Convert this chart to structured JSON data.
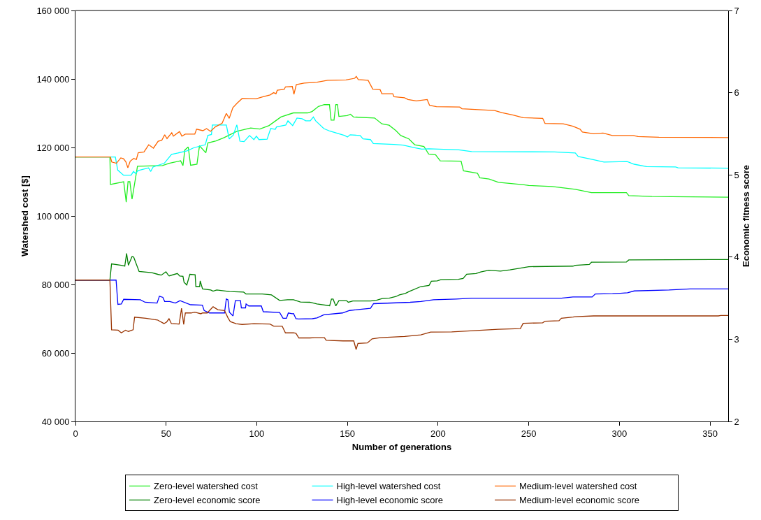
{
  "chart_data": {
    "type": "line",
    "xlabel": "Number of generations",
    "ylabel": "Watershed cost [$]",
    "y2label": "Economic fitness score",
    "xlim": [
      0,
      360
    ],
    "xticks": [
      0,
      50,
      100,
      150,
      200,
      250,
      300,
      350
    ],
    "ylim": [
      40000,
      160000
    ],
    "yticks": [
      {
        "value": 40000,
        "label": "40 000"
      },
      {
        "value": 60000,
        "label": "60 000"
      },
      {
        "value": 80000,
        "label": "80 000"
      },
      {
        "value": 100000,
        "label": "100 000"
      },
      {
        "value": 120000,
        "label": "120 000"
      },
      {
        "value": 140000,
        "label": "140 000"
      },
      {
        "value": 160000,
        "label": "160 000"
      }
    ],
    "y2lim": [
      2,
      7
    ],
    "y2ticks": [
      2,
      3,
      4,
      5,
      6,
      7
    ],
    "grid": false,
    "legend": "bottom",
    "marker": "none",
    "line_style": "solid",
    "series": [
      {
        "name": "Zero-level watershed cost",
        "color": "#22ee22",
        "x": [
          0,
          19,
          19.3,
          26.6,
          28,
          29,
          30,
          31.2,
          34.2,
          48,
          51.7,
          58,
          59.3,
          60.3,
          62.2,
          63.5,
          67,
          68.4,
          71.9,
          73,
          77.5,
          82,
          89,
          96.6,
          101.7,
          106.8,
          113.3,
          120.2,
          124,
          128,
          130.5,
          134,
          137.2,
          140.1,
          141,
          142.6,
          143.6,
          144.5,
          145.3,
          149.8,
          151.7,
          153.4,
          165,
          169,
          173,
          176.8,
          179.4,
          183.9,
          187.1,
          192.2,
          194.8,
          198.6,
          201.2,
          212.7,
          214,
          221.7,
          223,
          228.1,
          233.3,
          247.4,
          250,
          263,
          275.7,
          284.6,
          303.9,
          305.2,
          318,
          360
        ],
        "values": [
          117200,
          117200,
          109200,
          110000,
          104050,
          110000,
          110000,
          104900,
          114500,
          114700,
          115400,
          116100,
          114700,
          119250,
          120130,
          114800,
          115100,
          120500,
          118450,
          121300,
          121900,
          122900,
          124700,
          125700,
          125400,
          126400,
          128900,
          130100,
          130100,
          130100,
          130500,
          131970,
          132500,
          132500,
          128000,
          128000,
          132500,
          132500,
          129050,
          129300,
          129700,
          128900,
          128600,
          126900,
          126500,
          124900,
          123500,
          122500,
          120800,
          120300,
          118100,
          117900,
          116100,
          116000,
          113200,
          112500,
          111150,
          110800,
          109800,
          109100,
          108900,
          108600,
          107770,
          106800,
          106800,
          105950,
          105700,
          105470
        ]
      },
      {
        "name": "High-level watershed cost",
        "color": "#00ffff",
        "x": [
          0,
          22,
          23.3,
          26.5,
          30.7,
          32,
          33.2,
          34.5,
          40.3,
          41.5,
          42.8,
          49,
          53,
          61.5,
          65.2,
          71.6,
          73,
          75,
          75.5,
          83.2,
          84.8,
          87,
          89,
          90.7,
          93,
          96,
          98.4,
          99.8,
          101.2,
          105.7,
          107.7,
          110.2,
          110.9,
          116,
          117.2,
          119.8,
          122.2,
          125,
          127,
          129.5,
          131.2,
          132.5,
          137,
          140.2,
          144,
          148.5,
          150,
          151.5,
          157,
          158.6,
          162.7,
          164.3,
          175.6,
          180.7,
          187.1,
          191,
          194.8,
          211.4,
          218.5,
          264.2,
          275.7,
          277.3,
          286,
          291.5,
          304.3,
          308.2,
          315,
          331,
          332.4,
          360
        ],
        "values": [
          117200,
          117200,
          113400,
          111900,
          111900,
          113000,
          112400,
          113250,
          114050,
          113000,
          114300,
          115400,
          117970,
          119000,
          119900,
          120800,
          123500,
          123800,
          126550,
          126550,
          122500,
          123600,
          126600,
          121830,
          121700,
          123500,
          122300,
          123300,
          122300,
          122400,
          125540,
          125300,
          126000,
          126550,
          127770,
          126400,
          128600,
          128400,
          127770,
          127770,
          128900,
          127770,
          125500,
          124800,
          124200,
          123500,
          123050,
          123700,
          123500,
          122500,
          122300,
          121150,
          120900,
          120700,
          119930,
          119500,
          119600,
          119300,
          118800,
          118700,
          118400,
          117370,
          116400,
          115750,
          115900,
          115100,
          114400,
          114300,
          114050,
          113950
        ]
      },
      {
        "name": "Medium-level watershed cost",
        "color": "#ff6600",
        "x": [
          0,
          19.3,
          20,
          22.6,
          25,
          26.5,
          27.8,
          28.9,
          30.2,
          32.1,
          33.6,
          34.6,
          37.8,
          40.4,
          43,
          45.6,
          47.6,
          49.2,
          50.5,
          53.1,
          54,
          57.4,
          58.7,
          60.6,
          65.8,
          66.8,
          70.3,
          72.3,
          74.5,
          77.1,
          80.9,
          83.2,
          84.8,
          86.8,
          89.3,
          91.9,
          99.6,
          103.5,
          107.3,
          109.3,
          110.6,
          111.3,
          115.2,
          115.8,
          119.6,
          120.5,
          121.8,
          126.1,
          133.2,
          139.1,
          149.2,
          154,
          154.9,
          156,
          161.4,
          164,
          168,
          169,
          175,
          175.7,
          181.5,
          183.4,
          188,
          194,
          195.3,
          199.1,
          211.9,
          213.2,
          231.2,
          235.1,
          241.4,
          245.4,
          247,
          257.7,
          259,
          269,
          274.4,
          278.3,
          279.6,
          285.8,
          291,
          296.1,
          307.7,
          310.3,
          321.8,
          360
        ],
        "values": [
          117200,
          117200,
          115750,
          115400,
          116950,
          116700,
          115800,
          114050,
          116000,
          116800,
          116500,
          118450,
          118700,
          120800,
          119800,
          121830,
          122100,
          123700,
          122600,
          124300,
          123300,
          124670,
          123300,
          123900,
          123900,
          125340,
          124900,
          125500,
          124700,
          126000,
          127100,
          129950,
          128500,
          131600,
          133000,
          134300,
          134200,
          134800,
          135350,
          136000,
          135700,
          136700,
          137000,
          137700,
          137800,
          135540,
          138370,
          138800,
          139060,
          139600,
          139700,
          140200,
          140750,
          139800,
          139600,
          137030,
          136900,
          135700,
          135700,
          134800,
          134500,
          134000,
          133600,
          134000,
          132300,
          131900,
          131800,
          131300,
          130800,
          130200,
          129450,
          128900,
          128700,
          128500,
          127020,
          126900,
          126200,
          125350,
          124530,
          123990,
          124200,
          123500,
          123500,
          123170,
          123000,
          122900
        ]
      },
      {
        "name": "Zero-level economic score",
        "color": "#008000",
        "axis": "y2",
        "x": [
          0,
          19,
          19.9,
          25.3,
          27.2,
          28.2,
          29.2,
          31.2,
          32.1,
          35.1,
          42.1,
          45.4,
          47.3,
          49.9,
          51.2,
          51.7,
          56.2,
          57.5,
          59.3,
          59.9,
          61.4,
          63.1,
          66,
          66.4,
          68.5,
          68.8,
          70.1,
          74.6,
          75.9,
          77.9,
          85,
          92.7,
          94,
          103,
          108.1,
          112.6,
          117,
          120.3,
          124.1,
          129.3,
          133.2,
          140.2,
          141.2,
          142.1,
          143.6,
          145.3,
          149.5,
          150.5,
          153,
          162.7,
          166,
          169.2,
          173,
          176.8,
          178.7,
          181.9,
          184,
          190.5,
          195,
          196.3,
          199.5,
          201.6,
          211.2,
          213.8,
          215.8,
          220.9,
          223.5,
          228,
          234.4,
          239.6,
          250,
          274.4,
          275.7,
          283.4,
          284.6,
          303.9,
          305.2,
          360
        ],
        "values": [
          3.72,
          3.72,
          3.917,
          3.9,
          3.89,
          4.044,
          3.9,
          4.007,
          4.0,
          3.824,
          3.81,
          3.79,
          3.78,
          3.82,
          3.78,
          3.771,
          3.8,
          3.77,
          3.765,
          3.692,
          3.66,
          3.79,
          3.785,
          3.641,
          3.641,
          3.71,
          3.613,
          3.6,
          3.585,
          3.6,
          3.58,
          3.575,
          3.551,
          3.55,
          3.54,
          3.472,
          3.48,
          3.481,
          3.453,
          3.45,
          3.43,
          3.408,
          3.489,
          3.489,
          3.406,
          3.47,
          3.47,
          3.45,
          3.465,
          3.465,
          3.475,
          3.495,
          3.5,
          3.52,
          3.54,
          3.557,
          3.58,
          3.641,
          3.655,
          3.706,
          3.71,
          3.725,
          3.73,
          3.74,
          3.791,
          3.8,
          3.819,
          3.84,
          3.83,
          3.845,
          3.883,
          3.89,
          3.9,
          3.91,
          3.937,
          3.94,
          3.965,
          3.97
        ]
      },
      {
        "name": "High-level economic score",
        "color": "#0000ff",
        "axis": "y2",
        "x": [
          0,
          22.4,
          23.4,
          25.3,
          26.6,
          35.8,
          38.4,
          45,
          46.3,
          48.2,
          49.2,
          52,
          55.1,
          57.7,
          63.5,
          70,
          71,
          73.9,
          82.2,
          83.2,
          84.1,
          84.9,
          86.9,
          88.2,
          91,
          91.5,
          93.8,
          94.1,
          95.6,
          102.5,
          103.6,
          112.6,
          114.5,
          116.4,
          117.4,
          119.5,
          120.3,
          121.6,
          123,
          130.7,
          133.2,
          137,
          147.3,
          151.2,
          162.7,
          164.4,
          184.6,
          190.5,
          197.5,
          210,
          218.5,
          268,
          274.4,
          285,
          286.7,
          296.2,
          300.5,
          304.5,
          308.2,
          327.4,
          339,
          360
        ],
        "values": [
          3.72,
          3.72,
          3.425,
          3.43,
          3.486,
          3.48,
          3.45,
          3.44,
          3.523,
          3.51,
          3.46,
          3.46,
          3.44,
          3.47,
          3.42,
          3.415,
          3.349,
          3.32,
          3.32,
          3.49,
          3.48,
          3.33,
          3.284,
          3.47,
          3.47,
          3.382,
          3.382,
          3.43,
          3.405,
          3.405,
          3.335,
          3.325,
          3.256,
          3.256,
          3.32,
          3.31,
          3.312,
          3.25,
          3.247,
          3.25,
          3.26,
          3.298,
          3.32,
          3.35,
          3.377,
          3.433,
          3.45,
          3.46,
          3.48,
          3.49,
          3.5,
          3.5,
          3.514,
          3.514,
          3.551,
          3.555,
          3.56,
          3.565,
          3.588,
          3.6,
          3.613,
          3.613
        ]
      },
      {
        "name": "Medium-level economic score",
        "color": "#993300",
        "axis": "y2",
        "x": [
          0,
          19,
          19.9,
          23.5,
          25.3,
          27.6,
          29.2,
          31.8,
          32.6,
          38.8,
          43.3,
          45.2,
          48.8,
          50.3,
          51.6,
          52.9,
          57.2,
          58.5,
          59.7,
          60.6,
          63.8,
          65.8,
          69.2,
          70.1,
          72.7,
          75.9,
          78.5,
          82.2,
          84.1,
          85.4,
          88.6,
          91.9,
          98.4,
          107.3,
          109.3,
          114,
          115.8,
          120.3,
          121.6,
          123.2,
          129.3,
          131.9,
          137.3,
          138.3,
          147.6,
          153.5,
          154.8,
          155.8,
          161,
          163.6,
          168.1,
          181.6,
          190.5,
          195.9,
          207.5,
          233.2,
          245.4,
          246.9,
          257.7,
          259,
          266.7,
          268,
          274.4,
          275.7,
          285.8,
          316.6,
          354.6,
          355.9,
          360
        ],
        "values": [
          3.72,
          3.72,
          3.115,
          3.11,
          3.078,
          3.11,
          3.095,
          3.115,
          3.269,
          3.255,
          3.24,
          3.235,
          3.191,
          3.21,
          3.25,
          3.191,
          3.185,
          3.377,
          3.18,
          3.32,
          3.32,
          3.33,
          3.31,
          3.32,
          3.32,
          3.396,
          3.36,
          3.35,
          3.262,
          3.214,
          3.19,
          3.18,
          3.19,
          3.185,
          3.16,
          3.16,
          3.078,
          3.078,
          3.072,
          3.016,
          3.016,
          3.02,
          3.02,
          2.988,
          2.98,
          2.98,
          2.876,
          2.95,
          2.955,
          3.005,
          3.02,
          3.034,
          3.053,
          3.087,
          3.09,
          3.121,
          3.13,
          3.194,
          3.2,
          3.22,
          3.225,
          3.256,
          3.27,
          3.275,
          3.284,
          3.284,
          3.284,
          3.29,
          3.29
        ]
      }
    ]
  }
}
